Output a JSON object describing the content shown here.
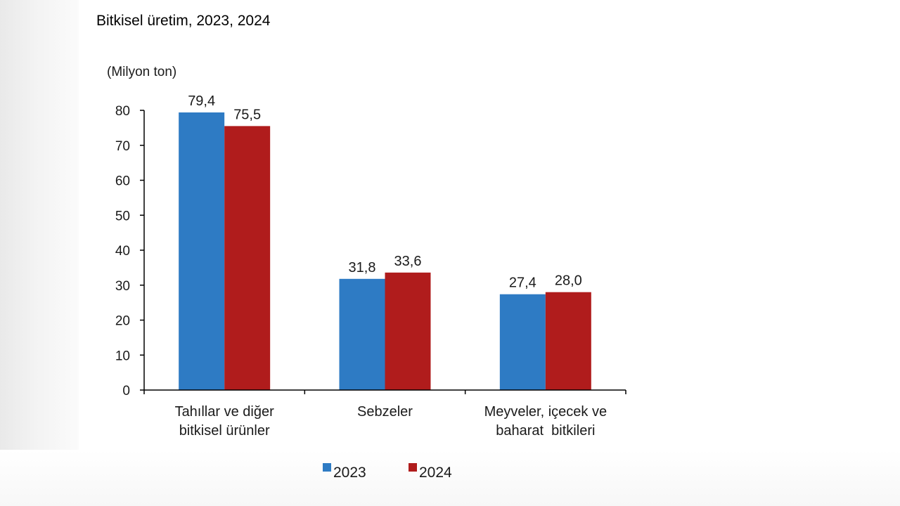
{
  "chart_data": {
    "type": "bar",
    "title": "Bitkisel üretim, 2023, 2024",
    "ylabel": "(Milyon ton)",
    "xlabel": "",
    "ylim": [
      0,
      80
    ],
    "yticks": [
      "0",
      "10",
      "20",
      "30",
      "40",
      "50",
      "60",
      "70",
      "80"
    ],
    "categories": [
      [
        "Tahıllar ve diğer",
        "bitkisel ürünler"
      ],
      [
        "Sebzeler"
      ],
      [
        "Meyveler, içecek ve",
        "baharat  bitkileri"
      ]
    ],
    "series": [
      {
        "name": "2023",
        "color": "#2e7bc4",
        "values": [
          79.4,
          31.8,
          27.4
        ],
        "labels": [
          "79,4",
          "31,8",
          "27,4"
        ]
      },
      {
        "name": "2024",
        "color": "#b01c1c",
        "values": [
          75.5,
          33.6,
          28.0
        ],
        "labels": [
          "75,5",
          "33,6",
          "28,0"
        ]
      }
    ],
    "legend": "bottom",
    "grid": false
  }
}
